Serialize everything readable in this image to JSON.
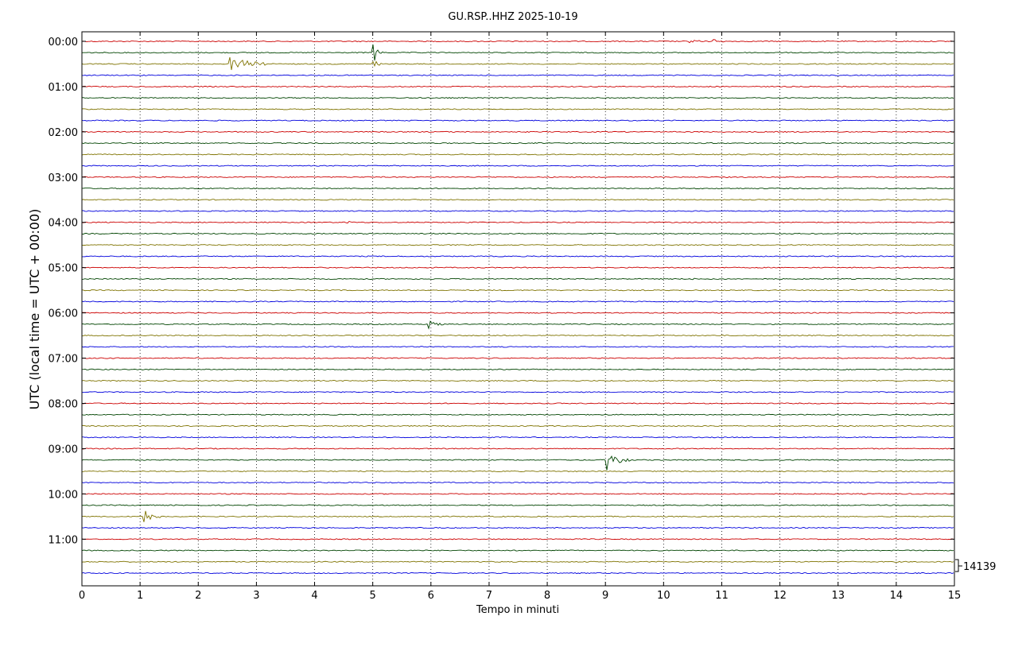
{
  "chart_data": {
    "type": "line",
    "title": "GU.RSP..HHZ 2025-10-19",
    "xlabel": "Tempo in minuti",
    "ylabel": "UTC (local time = UTC + 00:00)",
    "xlim": [
      0,
      15
    ],
    "x_ticks": [
      "0",
      "1",
      "2",
      "3",
      "4",
      "5",
      "6",
      "7",
      "8",
      "9",
      "10",
      "11",
      "12",
      "13",
      "14",
      "15"
    ],
    "y_tick_labels": [
      "00:00",
      "01:00",
      "02:00",
      "03:00",
      "04:00",
      "05:00",
      "06:00",
      "07:00",
      "08:00",
      "09:00",
      "10:00",
      "11:00"
    ],
    "traces_per_hour": 4,
    "trace_count": 48,
    "minutes_per_trace": 15,
    "trace_colors": [
      "#cc0000",
      "#004400",
      "#7f7300",
      "#0000dd"
    ],
    "grid": "vertical dotted",
    "scale_label": "14139",
    "events": [
      {
        "trace": 0,
        "minute": 10.45,
        "amplitude": 4,
        "duration": 0.12
      },
      {
        "trace": 0,
        "minute": 10.87,
        "amplitude": 7,
        "duration": 0.08
      },
      {
        "trace": 1,
        "minute": 5.02,
        "amplitude": 16,
        "duration": 0.04
      },
      {
        "trace": 2,
        "minute": 2.55,
        "amplitude": 9,
        "duration": 0.5
      },
      {
        "trace": 2,
        "minute": 5.02,
        "amplitude": 14,
        "duration": 0.04
      },
      {
        "trace": 16,
        "minute": 4.57,
        "amplitude": 2,
        "duration": 0.05
      },
      {
        "trace": 21,
        "minute": 10.5,
        "amplitude": 2,
        "duration": 0.05
      },
      {
        "trace": 25,
        "minute": 5.97,
        "amplitude": 6,
        "duration": 0.18
      },
      {
        "trace": 37,
        "minute": 9.02,
        "amplitude": 18,
        "duration": 0.25
      },
      {
        "trace": 42,
        "minute": 1.08,
        "amplitude": 11,
        "duration": 0.2
      }
    ]
  }
}
